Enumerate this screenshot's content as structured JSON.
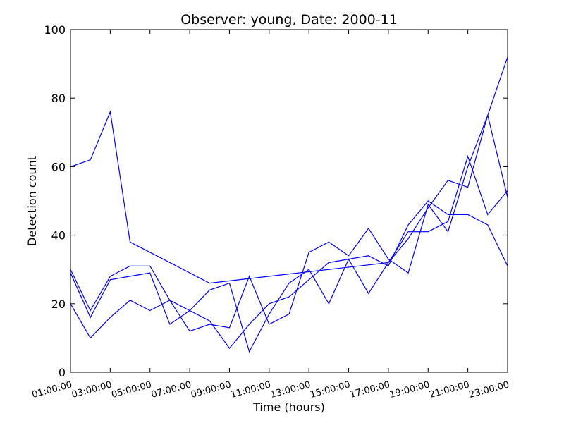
{
  "chart_data": {
    "type": "line",
    "title": "Observer: young, Date: 2000-11",
    "xlabel": "Time (hours)",
    "ylabel": "Detection count",
    "ylim": [
      0,
      100
    ],
    "xlim": [
      1,
      23
    ],
    "yticks": [
      0,
      20,
      40,
      60,
      80,
      100
    ],
    "xticks": [
      1,
      3,
      5,
      7,
      9,
      11,
      13,
      15,
      17,
      19,
      21,
      23
    ],
    "xtick_labels": [
      "01:00:00",
      "03:00:00",
      "05:00:00",
      "07:00:00",
      "09:00:00",
      "11:00:00",
      "13:00:00",
      "15:00:00",
      "17:00:00",
      "19:00:00",
      "21:00:00",
      "23:00:00"
    ],
    "line_color": "#0000ff",
    "grid": false,
    "series": [
      {
        "x": [
          1,
          2,
          3,
          4,
          8,
          17,
          18,
          19,
          20,
          21,
          22,
          23
        ],
        "values": [
          60,
          62,
          76,
          38,
          26,
          32,
          39,
          48,
          56,
          54,
          75,
          92
        ]
      },
      {
        "x": [
          1,
          2,
          3,
          4,
          5,
          6,
          7,
          8,
          9,
          10,
          11,
          12,
          13,
          14,
          15,
          16,
          17,
          18,
          19,
          20,
          21,
          22,
          23
        ],
        "values": [
          30,
          18,
          28,
          31,
          31,
          21,
          18,
          15,
          7,
          14,
          20,
          22,
          27,
          32,
          33,
          34,
          31,
          43,
          50,
          46,
          46,
          43,
          31
        ]
      },
      {
        "x": [
          1,
          2,
          3,
          4,
          5,
          6,
          7,
          8,
          9,
          10,
          11,
          12,
          13,
          14,
          15,
          16,
          17,
          18,
          19,
          20,
          21,
          22,
          23
        ],
        "values": [
          29,
          16,
          27,
          28,
          29,
          14,
          18,
          24,
          26,
          6,
          17,
          26,
          30,
          20,
          33,
          23,
          32,
          41,
          41,
          44,
          63,
          46,
          53
        ]
      },
      {
        "x": [
          1,
          2,
          3,
          4,
          5,
          6,
          7,
          8,
          9,
          10,
          11,
          12,
          13,
          14,
          15,
          16,
          17,
          18,
          19,
          20,
          21,
          22,
          23
        ],
        "values": [
          20,
          10,
          16,
          21,
          18,
          21,
          12,
          14,
          13,
          28,
          14,
          17,
          35,
          38,
          34,
          42,
          33,
          29,
          49,
          41,
          60,
          75,
          51
        ]
      }
    ]
  }
}
